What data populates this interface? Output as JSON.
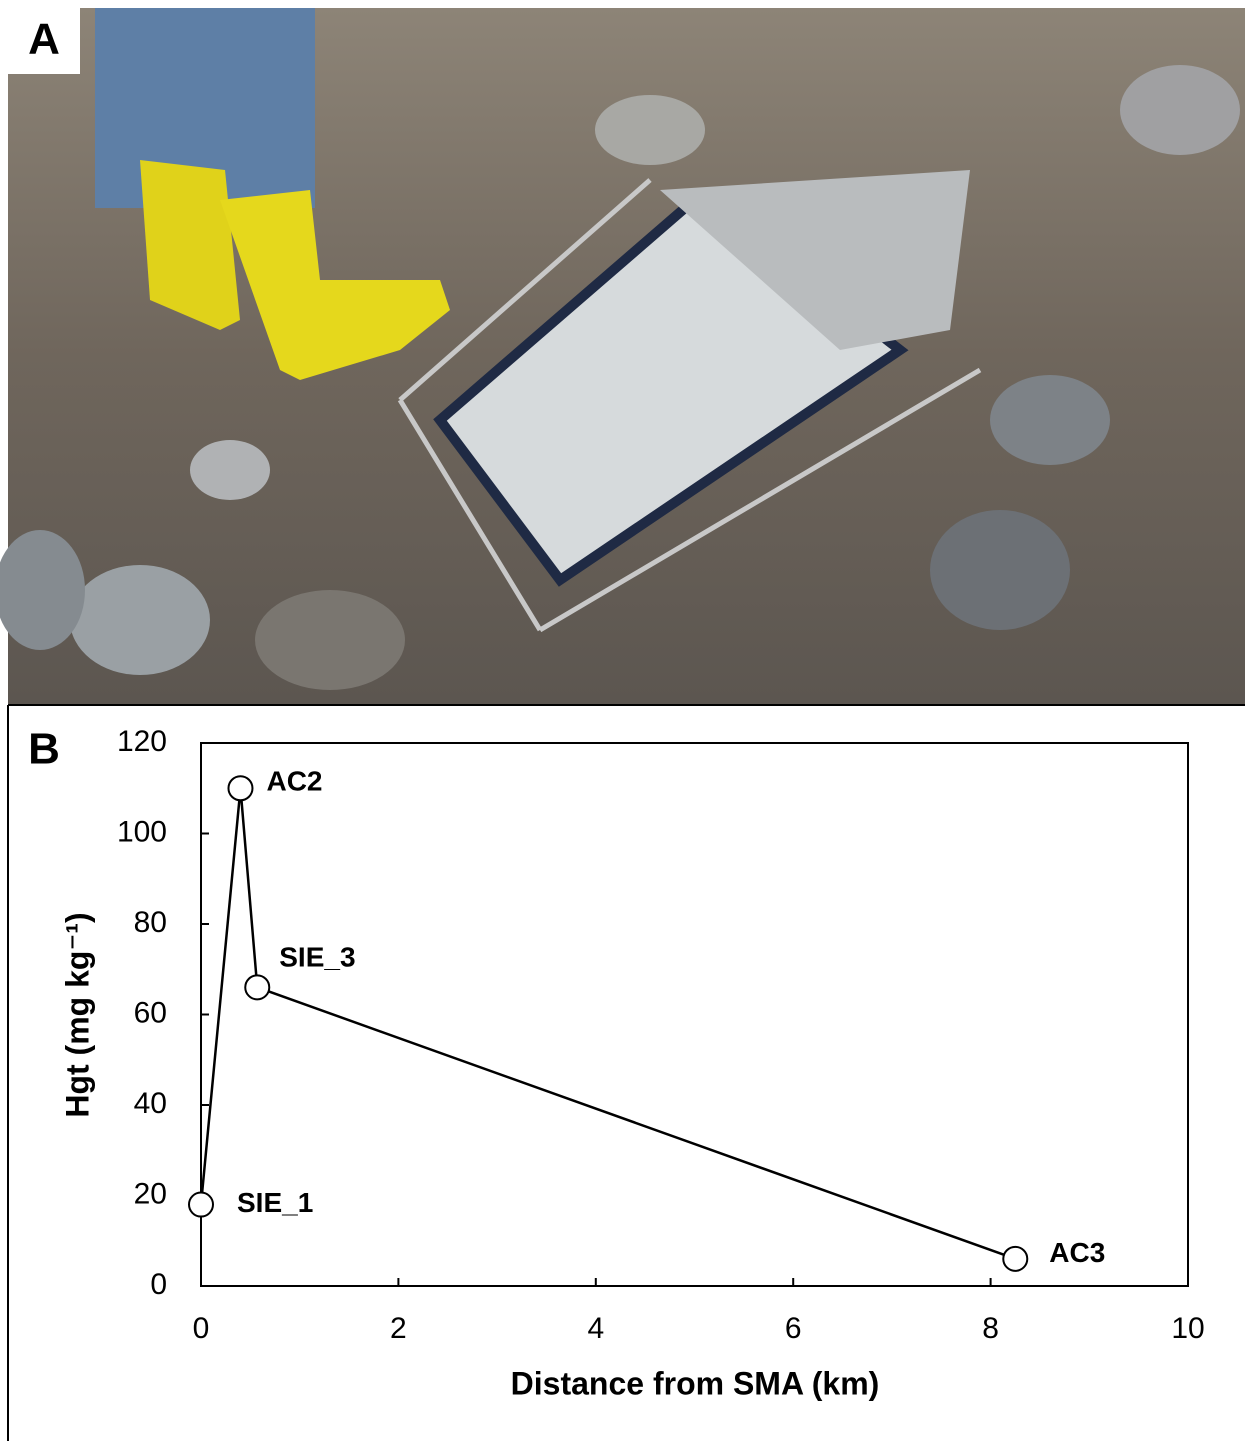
{
  "panel_a": {
    "letter": "A"
  },
  "chart_data": {
    "type": "line",
    "panel_letter": "B",
    "xlabel": "Distance from SMA (km)",
    "ylabel": "Hgt (mg kg⁻¹)",
    "x": [
      0,
      0.4,
      0.57,
      8.25
    ],
    "values": [
      18,
      110,
      66,
      6
    ],
    "point_labels": [
      "SIE_1",
      "AC2",
      "SIE_3",
      "AC3"
    ],
    "color": "#000000",
    "marker_fill": "#ffffff",
    "xlim": [
      0,
      10
    ],
    "xticks": [
      0,
      2,
      4,
      6,
      8,
      10
    ],
    "ylim": [
      0,
      120
    ],
    "yticks": [
      0,
      20,
      40,
      60,
      80,
      100,
      120
    ]
  }
}
